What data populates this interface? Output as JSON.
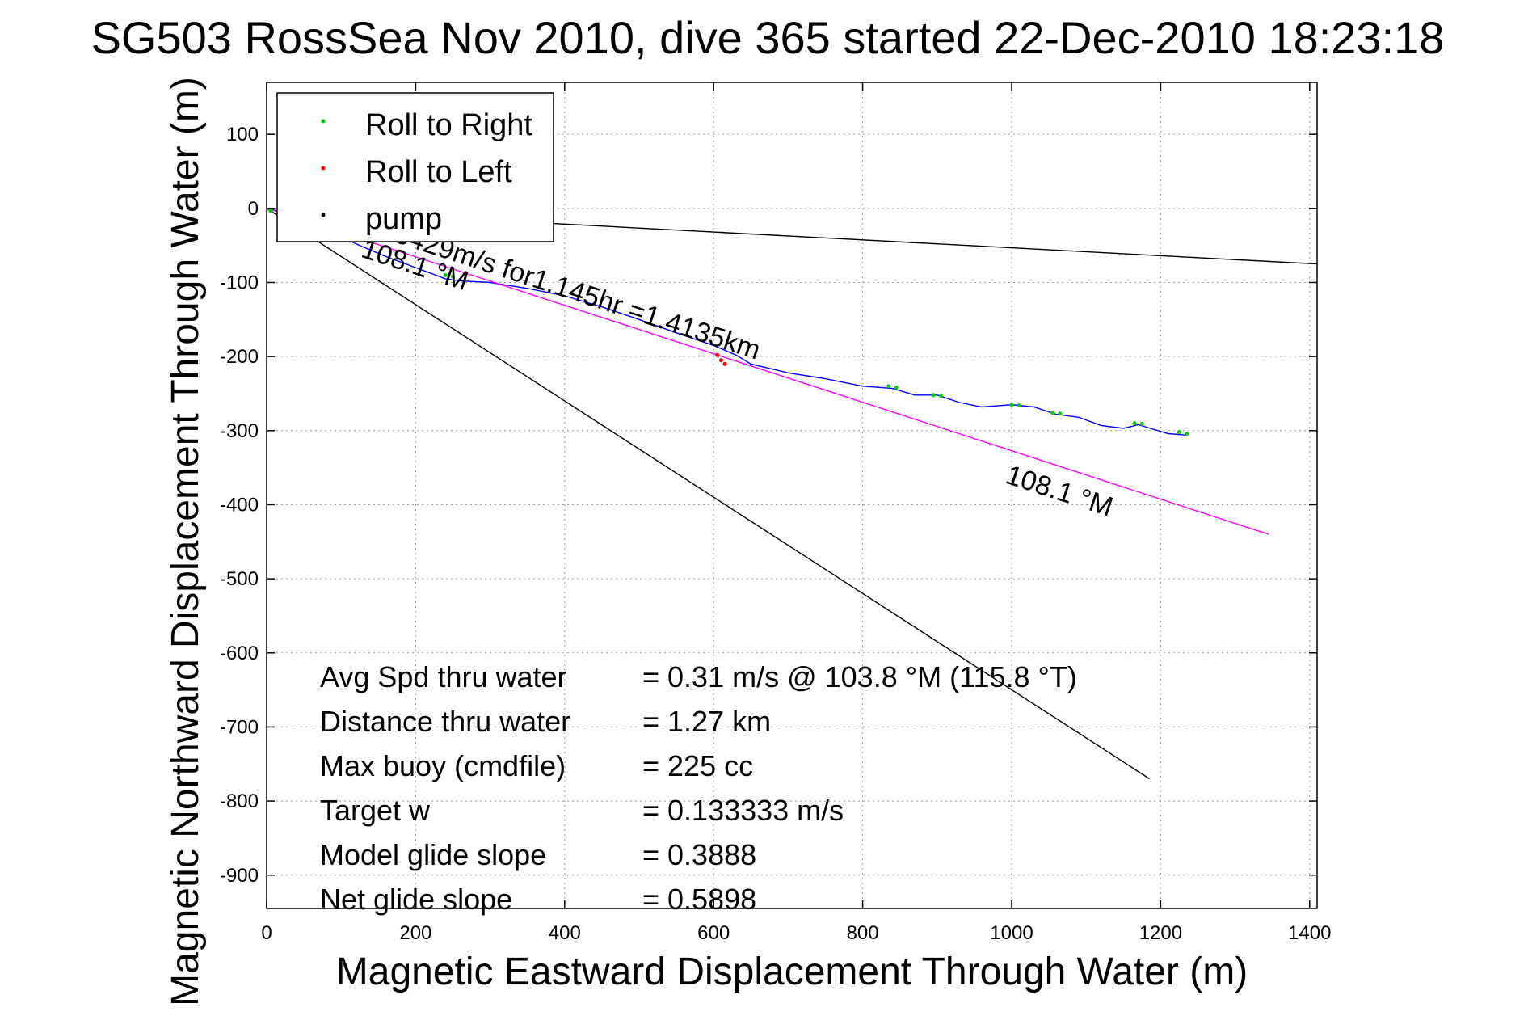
{
  "chart_data": {
    "type": "line",
    "title": "SG503 RossSea Nov 2010, dive 365 started 22-Dec-2010 18:23:18",
    "xlabel": "Magnetic Eastward Displacement Through Water (m)",
    "ylabel": "Magnetic Northward Displacement Through Water (m)",
    "xlim": [
      0,
      1410
    ],
    "ylim": [
      -945,
      170
    ],
    "grid": true,
    "xticks": [
      0,
      200,
      400,
      600,
      800,
      1000,
      1200,
      1400
    ],
    "yticks": [
      100,
      0,
      -100,
      -200,
      -300,
      -400,
      -500,
      -600,
      -700,
      -800,
      -900
    ],
    "legend": {
      "placement": "top-left",
      "entries": [
        {
          "label": "Roll to Right",
          "color": "#00cc00"
        },
        {
          "label": "Roll to Left",
          "color": "#ff0000"
        },
        {
          "label": "pump",
          "color": "#000000"
        }
      ]
    },
    "series": [
      {
        "name": "",
        "color": "#0000ff",
        "x": [
          0,
          40,
          80,
          120,
          160,
          200,
          240,
          260,
          300,
          350,
          400,
          450,
          500,
          550,
          600,
          630,
          650,
          700,
          750,
          800,
          840,
          870,
          900,
          930,
          960,
          1000,
          1030,
          1060,
          1090,
          1120,
          1150,
          1170,
          1190,
          1210,
          1235
        ],
        "y": [
          0,
          -10,
          -28,
          -48,
          -65,
          -80,
          -95,
          -98,
          -100,
          -108,
          -118,
          -133,
          -150,
          -168,
          -185,
          -198,
          -210,
          -222,
          -230,
          -240,
          -243,
          -252,
          -252,
          -262,
          -268,
          -265,
          -268,
          -278,
          -282,
          -293,
          -297,
          -292,
          -298,
          -304,
          -306
        ]
      },
      {
        "name": "",
        "color": "#ff00ff",
        "x": [
          0,
          1345
        ],
        "y": [
          0,
          -440
        ]
      },
      {
        "name": "",
        "color": "#000000",
        "x": [
          0,
          1410
        ],
        "y": [
          0,
          -75
        ]
      },
      {
        "name": "",
        "color": "#000000",
        "x": [
          0,
          1185
        ],
        "y": [
          0,
          -770
        ]
      }
    ],
    "markers": [
      {
        "kind": "right",
        "color": "#00cc00",
        "x": [
          5,
          240,
          250,
          835,
          845,
          895,
          905,
          1000,
          1010,
          1055,
          1065,
          1165,
          1175,
          1225,
          1235
        ],
        "y": [
          -3,
          -90,
          -92,
          -240,
          -242,
          -252,
          -253,
          -265,
          -266,
          -276,
          -277,
          -290,
          -291,
          -302,
          -304
        ]
      },
      {
        "kind": "left",
        "color": "#ff0000",
        "x": [
          605,
          610,
          615
        ],
        "y": [
          -198,
          -205,
          -210
        ]
      }
    ],
    "annotations": [
      {
        "text": "0.3429m/s for1.145hr =1.4135km",
        "x": 140,
        "y": -35,
        "rotate": 18
      },
      {
        "text": "108.1 °M",
        "x": 125,
        "y": -65,
        "rotate": 18
      },
      {
        "text": "108.1 °M",
        "x": 990,
        "y": -370,
        "rotate": 18
      }
    ],
    "stats": [
      {
        "label": "Avg Spd thru water",
        "value": "=  0.31 m/s @ 103.8 °M (115.8 °T)"
      },
      {
        "label": "Distance thru water",
        "value": "=  1.27 km"
      },
      {
        "label": "Max buoy (cmdfile)",
        "value": "= 225 cc"
      },
      {
        "label": "Target w",
        "value": "= 0.133333 m/s"
      },
      {
        "label": "Model glide slope",
        "value": "= 0.3888"
      },
      {
        "label": "Net glide slope",
        "value": "= 0.5898"
      }
    ]
  }
}
